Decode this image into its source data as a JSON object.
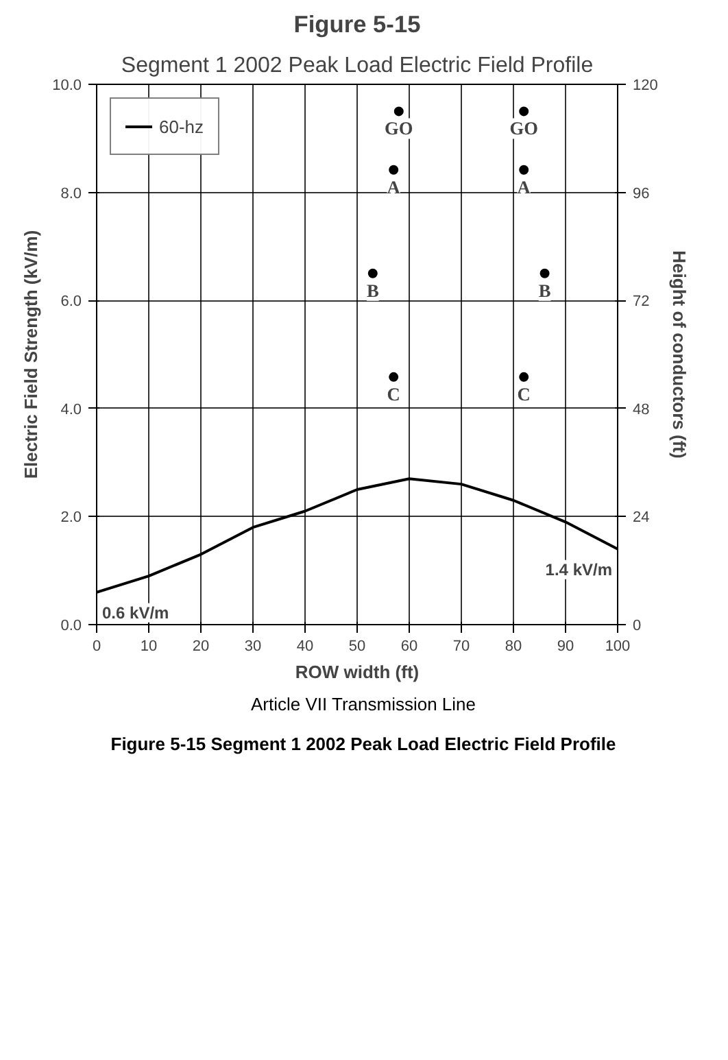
{
  "chart_data": {
    "type": "line",
    "title": "Figure 5-15",
    "subtitle": "Segment 1 2002 Peak Load Electric Field Profile",
    "xlabel": "ROW width (ft)",
    "ylabel": "Electric Field Strength (kV/m)",
    "y2label": "Height of conductors (ft)",
    "x": [
      0,
      10,
      20,
      30,
      40,
      50,
      60,
      70,
      80,
      90,
      100
    ],
    "series": [
      {
        "name": "60-hz",
        "color": "#000000",
        "marker": "none",
        "line_style": "solid",
        "values": [
          0.6,
          0.9,
          1.3,
          1.8,
          2.1,
          2.5,
          2.7,
          2.6,
          2.3,
          1.9,
          1.4
        ]
      },
      {
        "type": "scatter",
        "axis": "y2",
        "color": "#000000",
        "marker": "circle",
        "x": [
          58,
          57,
          53,
          57,
          82,
          82,
          86,
          82
        ],
        "values": [
          114,
          101,
          78,
          55,
          114,
          101,
          78,
          55
        ],
        "value_labels": [
          "GO",
          "A",
          "B",
          "C",
          "GO",
          "A",
          "B",
          "C"
        ]
      }
    ],
    "xlim": [
      0,
      100
    ],
    "xticks": [
      0,
      10,
      20,
      30,
      40,
      50,
      60,
      70,
      80,
      90,
      100
    ],
    "ylim": [
      0,
      10
    ],
    "yticks": [
      {
        "value": 0,
        "label": "0.0"
      },
      {
        "value": 2,
        "label": "2.0"
      },
      {
        "value": 4,
        "label": "4.0"
      },
      {
        "value": 6,
        "label": "6.0"
      },
      {
        "value": 8,
        "label": "8.0"
      },
      {
        "value": 10,
        "label": "10.0"
      }
    ],
    "y2lim": [
      0,
      120
    ],
    "y2ticks": [
      0,
      24,
      48,
      72,
      96,
      120
    ],
    "grid": true,
    "legend": "top left",
    "annotations": [
      {
        "text": "0.6 kV/m",
        "x": 0,
        "y": 0.6
      },
      {
        "text": "1.4 kV/m",
        "x": 100,
        "y": 1.4
      },
      "Article VII Transmission Line",
      "Figure 5-15 Segment 1 2002 Peak Load Electric Field Profile"
    ]
  }
}
